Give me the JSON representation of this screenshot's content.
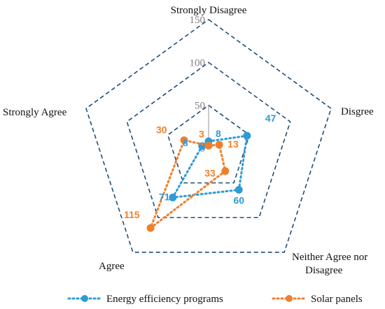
{
  "chart_data": {
    "type": "radar",
    "categories": [
      "Strongly Disagree",
      "Disgree",
      "Neither Agree nor Disagree",
      "Agree",
      "Strongly Agree"
    ],
    "rlim": [
      0,
      150
    ],
    "ticks": [
      "0",
      "50",
      "100",
      "150"
    ],
    "tick_values": [
      0,
      50,
      100,
      150
    ],
    "grid": true,
    "legend_position": "bottom",
    "series": [
      {
        "name": "Energy efficiency programs",
        "values": [
          8,
          47,
          60,
          71,
          8
        ],
        "labels": [
          "8",
          "47",
          "60",
          "71",
          "8"
        ],
        "color": "#2e9bd6"
      },
      {
        "name": "Solar panels",
        "values": [
          3,
          13,
          33,
          115,
          30
        ],
        "labels": [
          "3",
          "13",
          "33",
          "115",
          "30"
        ],
        "color": "#f07f2b"
      }
    ],
    "grid_color": "#1f4e79"
  }
}
